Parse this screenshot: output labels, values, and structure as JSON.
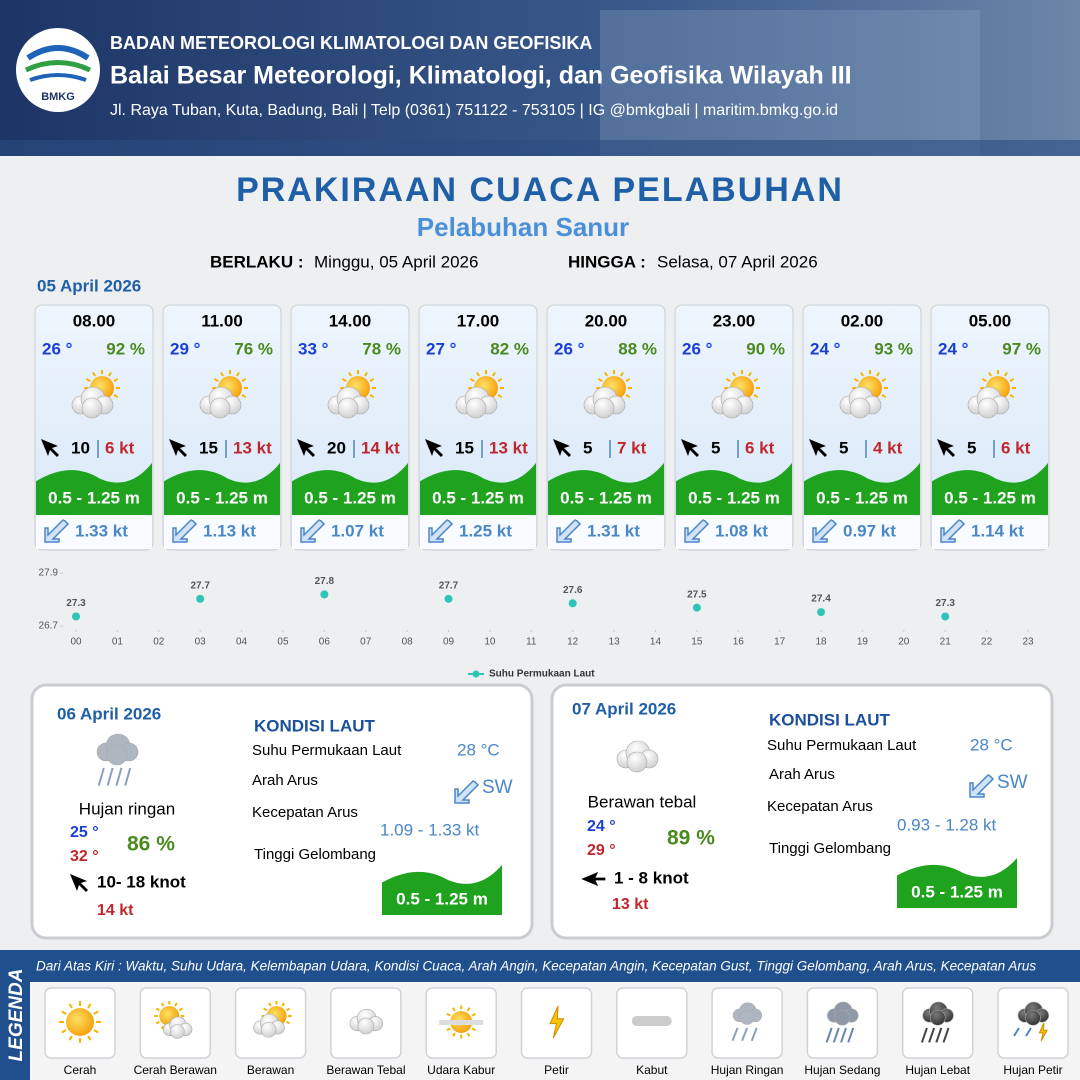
{
  "header": {
    "logo_text": "BMKG",
    "agency": "BADAN METEOROLOGI KLIMATOLOGI DAN GEOFISIKA",
    "office": "Balai Besar Meteorologi, Klimatologi, dan Geofisika Wilayah III",
    "contact": "Jl. Raya Tuban, Kuta, Badung, Bali | Telp (0361) 751122 - 753105 | IG @bmkgbali | maritim.bmkg.go.id"
  },
  "title": "PRAKIRAAN CUACA PELABUHAN",
  "subtitle": "Pelabuhan Sanur",
  "validity": {
    "from_label": "BERLAKU :",
    "from": "Minggu, 05 April 2026",
    "to_label": "HINGGA :",
    "to": "Selasa, 07 April 2026"
  },
  "day1": {
    "date": "05 April 2026",
    "slots": [
      {
        "time": "08.00",
        "temp": "26 °",
        "humidity": "92 %",
        "wind": "10",
        "gust": "6 kt",
        "wave": "0.5 - 1.25 m",
        "current": "1.33 kt"
      },
      {
        "time": "11.00",
        "temp": "29 °",
        "humidity": "76 %",
        "wind": "15",
        "gust": "13 kt",
        "wave": "0.5 - 1.25 m",
        "current": "1.13 kt"
      },
      {
        "time": "14.00",
        "temp": "33 °",
        "humidity": "78 %",
        "wind": "20",
        "gust": "14 kt",
        "wave": "0.5 - 1.25 m",
        "current": "1.07 kt"
      },
      {
        "time": "17.00",
        "temp": "27 °",
        "humidity": "82 %",
        "wind": "15",
        "gust": "13 kt",
        "wave": "0.5 - 1.25 m",
        "current": "1.25 kt"
      },
      {
        "time": "20.00",
        "temp": "26 °",
        "humidity": "88 %",
        "wind": "5",
        "gust": "7 kt",
        "wave": "0.5 - 1.25 m",
        "current": "1.31 kt"
      },
      {
        "time": "23.00",
        "temp": "26 °",
        "humidity": "90 %",
        "wind": "5",
        "gust": "6 kt",
        "wave": "0.5 - 1.25 m",
        "current": "1.08 kt"
      },
      {
        "time": "02.00",
        "temp": "24 °",
        "humidity": "93 %",
        "wind": "5",
        "gust": "4 kt",
        "wave": "0.5 - 1.25 m",
        "current": "0.97 kt"
      },
      {
        "time": "05.00",
        "temp": "24 °",
        "humidity": "97 %",
        "wind": "5",
        "gust": "6 kt",
        "wave": "0.5 - 1.25 m",
        "current": "1.14 kt"
      }
    ]
  },
  "chart_data": {
    "type": "scatter",
    "x": [
      0,
      3,
      6,
      9,
      12,
      15,
      18,
      21
    ],
    "series": [
      {
        "name": "Suhu Permukaan Laut",
        "color": "#2ec4b6",
        "values": [
          27.3,
          27.7,
          27.8,
          27.7,
          27.6,
          27.5,
          27.4,
          27.3
        ]
      }
    ],
    "xlim": [
      0,
      23
    ],
    "xticks": [
      {
        "value": 0,
        "label": "00"
      },
      {
        "value": 1,
        "label": "01"
      },
      {
        "value": 2,
        "label": "02"
      },
      {
        "value": 3,
        "label": "03"
      },
      {
        "value": 4,
        "label": "04"
      },
      {
        "value": 5,
        "label": "05"
      },
      {
        "value": 6,
        "label": "06"
      },
      {
        "value": 7,
        "label": "07"
      },
      {
        "value": 8,
        "label": "08"
      },
      {
        "value": 9,
        "label": "09"
      },
      10,
      11,
      12,
      13,
      14,
      15,
      16,
      17,
      18,
      19,
      20,
      21,
      22,
      23
    ],
    "ylim": [
      26.7,
      27.9
    ],
    "yticks": [
      26.7,
      27.9
    ]
  },
  "days": [
    {
      "date": "06 April 2026",
      "condition": "Hujan ringan",
      "temp_min": "25 °",
      "temp_max": "32 °",
      "humidity": "86 %",
      "wind": "10- 18 knot",
      "gust": "14 kt",
      "sea": {
        "heading": "KONDISI LAUT",
        "sst_label": "Suhu Permukaan Laut",
        "sst": "28 °C",
        "direction_label": "Arah Arus",
        "direction": "SW",
        "speed_label": "Kecepatan Arus",
        "speed": "1.09 - 1.33 kt",
        "wave_label": "Tinggi Gelombang",
        "wave": "0.5 - 1.25 m"
      }
    },
    {
      "date": "07 April 2026",
      "condition": "Berawan tebal",
      "temp_min": "24 °",
      "temp_max": "29 °",
      "humidity": "89 %",
      "wind": "1 - 8 knot",
      "gust": "13 kt",
      "sea": {
        "heading": "KONDISI LAUT",
        "sst_label": "Suhu Permukaan Laut",
        "sst": "28 °C",
        "direction_label": "Arah Arus",
        "direction": "SW",
        "speed_label": "Kecepatan Arus",
        "speed": "0.93 - 1.28 kt",
        "wave_label": "Tinggi Gelombang",
        "wave": "0.5 - 1.25 m"
      }
    }
  ],
  "legend": {
    "title": "LEGENDA",
    "description": "Dari Atas Kiri : Waktu, Suhu Udara, Kelembapan Udara, Kondisi Cuaca, Arah Angin, Kecepatan Angin, Kecepatan Gust, Tinggi Gelombang, Arah Arus, Kecepatan Arus",
    "items": [
      "Cerah",
      "Cerah Berawan",
      "Berawan",
      "Berawan Tebal",
      "Udara Kabur",
      "Petir",
      "Kabut",
      "Hujan Ringan",
      "Hujan Sedang",
      "Hujan Lebat",
      "Hujan Petir"
    ]
  }
}
